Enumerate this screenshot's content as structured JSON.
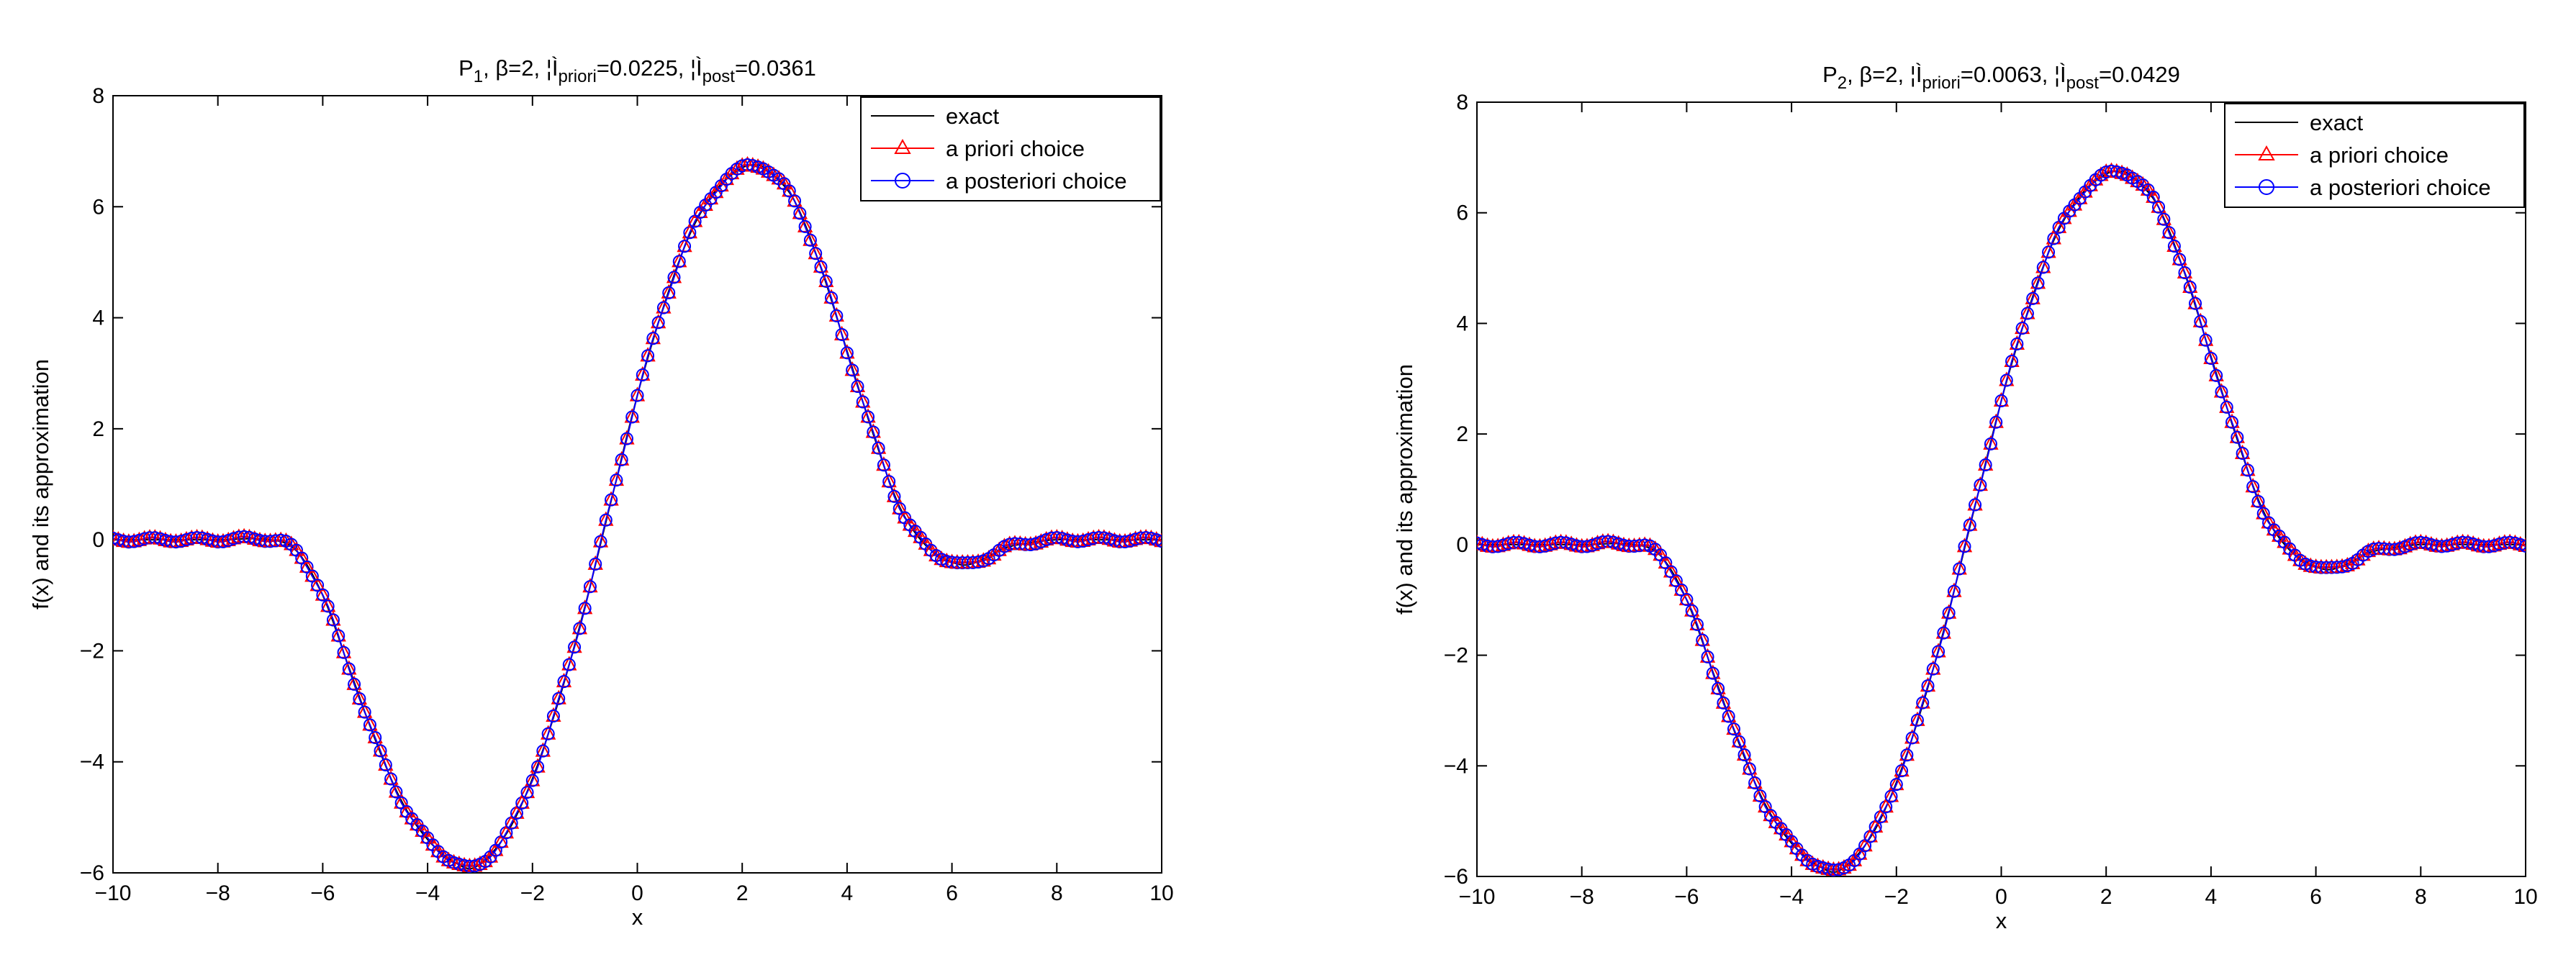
{
  "figure_description_none": "",
  "chart_data": [
    {
      "type": "line",
      "title": {
        "main": "P",
        "sub": "1",
        "rest1": ", β=2, ",
        "sym1": "¦Ì",
        "sub1": "priori",
        "rest2": "=0.0225, ",
        "sym2": "¦Ì",
        "sub2": "post",
        "rest3": "=0.0361"
      },
      "xlabel": "x",
      "ylabel": "f(x) and its approximation",
      "xlim": [
        -10,
        10
      ],
      "ylim": [
        -6,
        8
      ],
      "xticks": [
        -10,
        -8,
        -6,
        -4,
        -2,
        0,
        2,
        4,
        6,
        8,
        10
      ],
      "yticks": [
        -6,
        -4,
        -2,
        0,
        2,
        4,
        6,
        8
      ],
      "xtick_labels": [
        "−10",
        "−8",
        "−6",
        "−4",
        "−2",
        "0",
        "2",
        "4",
        "6",
        "8",
        "10"
      ],
      "ytick_labels": [
        "−6",
        "−4",
        "−2",
        "0",
        "2",
        "4",
        "6",
        "8"
      ],
      "legend_position": "top-right",
      "series": [
        {
          "name": "exact",
          "color": "#000000",
          "marker": "none",
          "x": [
            -10,
            -9,
            -8,
            -7,
            -6.5,
            -6,
            -5.5,
            -5,
            -4.5,
            -4,
            -3.5,
            -3.1,
            -2.5,
            -2,
            -1.5,
            -1,
            -0.5,
            0,
            0.5,
            1,
            1.5,
            2,
            2.3,
            2.5,
            3,
            3.5,
            4,
            4.5,
            5,
            5.5,
            6,
            6.3,
            6.7,
            7,
            7.5,
            8,
            9,
            10
          ],
          "y": [
            0,
            0,
            0,
            0,
            -0.2,
            -1.0,
            -2.3,
            -3.6,
            -4.7,
            -5.4,
            -5.8,
            -5.9,
            -5.3,
            -4.3,
            -2.9,
            -1.2,
            0.7,
            2.6,
            4.2,
            5.5,
            6.3,
            6.7,
            6.75,
            6.65,
            6.1,
            4.9,
            3.4,
            1.9,
            0.6,
            -0.1,
            -0.4,
            -0.45,
            -0.3,
            -0.15,
            -0.05,
            0,
            0,
            0
          ]
        },
        {
          "name": "a priori choice",
          "color": "#ff0000",
          "marker": "triangle"
        },
        {
          "name": "a posteriori choice",
          "color": "#0000ff",
          "marker": "circle"
        }
      ]
    },
    {
      "type": "line",
      "title": {
        "main": "P",
        "sub": "2",
        "rest1": ", β=2, ",
        "sym1": "¦Ì",
        "sub1": "priori",
        "rest2": "=0.0063, ",
        "sym2": "¦Ì",
        "sub2": "post",
        "rest3": "=0.0429"
      },
      "xlabel": "x",
      "ylabel": "f(x) and its approximation",
      "xlim": [
        -10,
        10
      ],
      "ylim": [
        -6,
        8
      ],
      "xticks": [
        -10,
        -8,
        -6,
        -4,
        -2,
        0,
        2,
        4,
        6,
        8,
        10
      ],
      "yticks": [
        -6,
        -4,
        -2,
        0,
        2,
        4,
        6,
        8
      ],
      "xtick_labels": [
        "−10",
        "−8",
        "−6",
        "−4",
        "−2",
        "0",
        "2",
        "4",
        "6",
        "8",
        "10"
      ],
      "ytick_labels": [
        "−6",
        "−4",
        "−2",
        "0",
        "2",
        "4",
        "6",
        "8"
      ],
      "legend_position": "top-right",
      "series": [
        {
          "name": "exact",
          "color": "#000000",
          "marker": "none",
          "x": [
            -10,
            -9,
            -8,
            -7,
            -6.5,
            -6,
            -5.5,
            -5,
            -4.5,
            -4,
            -3.5,
            -3.1,
            -2.5,
            -2,
            -1.5,
            -1,
            -0.5,
            0,
            0.5,
            1,
            1.5,
            2,
            2.3,
            2.5,
            3,
            3.5,
            4,
            4.5,
            5,
            5.5,
            6,
            6.3,
            6.7,
            7,
            7.5,
            8,
            9,
            10
          ],
          "y": [
            0,
            0,
            0,
            0,
            -0.2,
            -1.0,
            -2.3,
            -3.6,
            -4.7,
            -5.4,
            -5.8,
            -5.9,
            -5.3,
            -4.3,
            -2.9,
            -1.2,
            0.7,
            2.6,
            4.2,
            5.5,
            6.3,
            6.7,
            6.75,
            6.65,
            6.1,
            4.9,
            3.4,
            1.9,
            0.6,
            -0.1,
            -0.4,
            -0.45,
            -0.3,
            -0.15,
            -0.05,
            0,
            0,
            0
          ]
        },
        {
          "name": "a priori choice",
          "color": "#ff0000",
          "marker": "triangle"
        },
        {
          "name": "a posteriori choice",
          "color": "#0000ff",
          "marker": "circle"
        }
      ]
    }
  ]
}
